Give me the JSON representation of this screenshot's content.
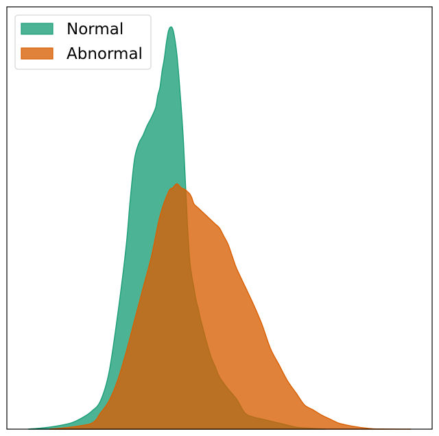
{
  "chart_data": {
    "type": "area",
    "title": "",
    "xlabel": "",
    "ylabel": "",
    "xlim": [
      0,
      100
    ],
    "ylim": [
      0,
      1.05
    ],
    "grid": false,
    "legend_position": "top-left",
    "series": [
      {
        "name": "Normal",
        "color": "#1b9e77",
        "x": [
          5,
          10,
          15,
          18,
          20,
          22,
          24,
          26,
          28,
          29,
          30,
          31,
          32,
          33,
          34,
          35,
          35.5,
          36,
          36.5,
          37,
          37.5,
          38,
          38.5,
          39,
          39.5,
          40,
          40.5,
          41,
          41.5,
          42,
          42.5,
          43,
          43.5,
          44,
          44.5,
          45,
          45.5,
          46,
          47,
          48,
          49,
          50,
          52,
          54,
          56,
          58,
          60,
          62,
          64,
          66,
          68,
          70,
          75
        ],
        "values": [
          0,
          0.005,
          0.015,
          0.03,
          0.045,
          0.07,
          0.14,
          0.28,
          0.45,
          0.57,
          0.67,
          0.71,
          0.73,
          0.755,
          0.775,
          0.8,
          0.83,
          0.85,
          0.89,
          0.92,
          0.96,
          0.99,
          1.0,
          0.995,
          0.97,
          0.93,
          0.87,
          0.8,
          0.72,
          0.61,
          0.5,
          0.42,
          0.38,
          0.35,
          0.32,
          0.3,
          0.275,
          0.255,
          0.215,
          0.18,
          0.155,
          0.13,
          0.1,
          0.075,
          0.04,
          0.03,
          0.025,
          0.02,
          0.015,
          0.01,
          0.005,
          0.003,
          0
        ]
      },
      {
        "name": "Abnormal",
        "color": "#d95f02",
        "x": [
          10,
          15,
          20,
          22,
          24,
          26,
          28,
          30,
          32,
          34,
          36,
          38,
          39,
          40,
          41,
          42,
          42.5,
          43,
          43.5,
          44,
          45,
          46,
          47,
          48,
          49,
          50,
          51,
          52,
          53,
          54,
          56,
          58,
          60,
          62,
          64,
          66,
          68,
          70,
          72,
          74,
          76,
          78,
          80,
          82,
          84,
          86,
          88,
          90,
          95
        ],
        "values": [
          0,
          0.005,
          0.015,
          0.04,
          0.07,
          0.12,
          0.19,
          0.27,
          0.35,
          0.43,
          0.53,
          0.59,
          0.6,
          0.61,
          0.6,
          0.595,
          0.59,
          0.585,
          0.575,
          0.56,
          0.55,
          0.54,
          0.53,
          0.52,
          0.51,
          0.5,
          0.48,
          0.46,
          0.43,
          0.4,
          0.355,
          0.31,
          0.26,
          0.2,
          0.16,
          0.12,
          0.09,
          0.06,
          0.048,
          0.035,
          0.025,
          0.015,
          0.01,
          0.006,
          0.003,
          0.001,
          0.0005,
          0.0002,
          0
        ]
      }
    ]
  }
}
